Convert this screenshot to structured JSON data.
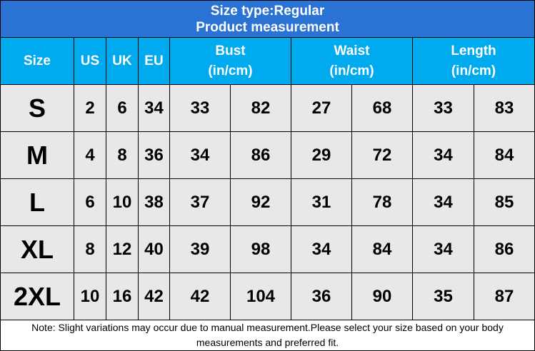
{
  "title": [
    "Size type:Regular",
    "Product measurement"
  ],
  "table": {
    "header": [
      {
        "label": "Size"
      },
      {
        "label": "US"
      },
      {
        "label": "UK"
      },
      {
        "label": "EU"
      },
      {
        "label": "Bust",
        "unit": "(in/cm)"
      },
      {
        "label": "Waist",
        "unit": "(in/cm)"
      },
      {
        "label": "Length",
        "unit": "(in/cm)"
      }
    ],
    "rows": [
      [
        "S",
        2,
        6,
        34,
        33,
        82,
        27,
        68,
        33,
        83
      ],
      [
        "M",
        4,
        8,
        36,
        34,
        86,
        29,
        72,
        34,
        84
      ],
      [
        "L",
        6,
        10,
        38,
        37,
        92,
        31,
        78,
        34,
        85
      ],
      [
        "XL",
        8,
        12,
        40,
        39,
        98,
        34,
        84,
        34,
        86
      ],
      [
        "2XL",
        10,
        16,
        42,
        42,
        104,
        36,
        90,
        35,
        87
      ]
    ]
  },
  "note": "Note: Slight variations may occur due to manual measurement.Please select your size based on your body measurements and preferred fit."
}
